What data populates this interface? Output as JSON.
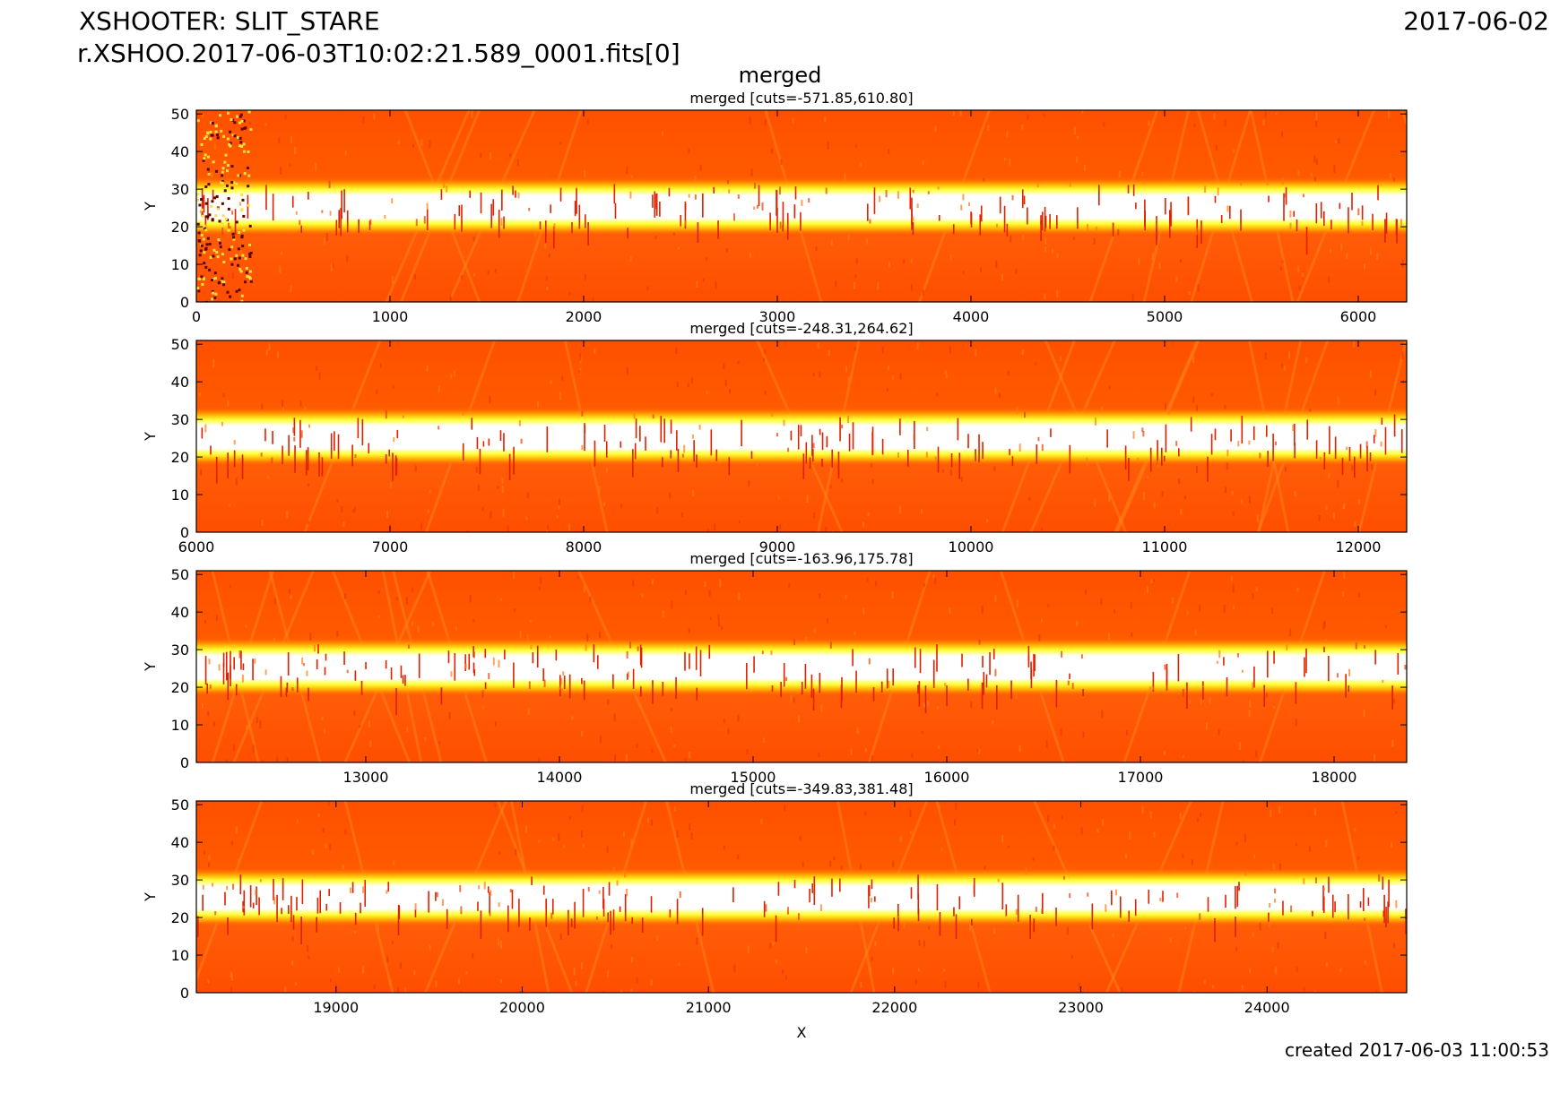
{
  "header": {
    "title_line1": "XSHOOTER: SLIT_STARE",
    "title_line2": "r.XSHOO.2017-06-03T10:02:21.589_0001.fits[0]",
    "date": "2017-06-02",
    "figure_title": "merged",
    "created": "created 2017-06-03 11:00:53"
  },
  "colors": {
    "background_dark": "#e8400a",
    "background_mid": "#ff5a00",
    "trace_core": "#ffffff",
    "trace_edge": "#ffff33",
    "bad_pixel": "#e02000"
  },
  "chart_data": [
    {
      "type": "heatmap",
      "title": "merged [cuts=-571.85,610.80]",
      "xlabel": "",
      "ylabel": "Y",
      "xlim": [
        0,
        6250
      ],
      "ylim": [
        0,
        51
      ],
      "xticks": [
        0,
        1000,
        2000,
        3000,
        4000,
        5000,
        6000
      ],
      "yticks": [
        0,
        10,
        20,
        30,
        40,
        50
      ],
      "trace_y": [
        20,
        31
      ]
    },
    {
      "type": "heatmap",
      "title": "merged [cuts=-248.31,264.62]",
      "xlabel": "",
      "ylabel": "Y",
      "xlim": [
        6000,
        12250
      ],
      "ylim": [
        0,
        51
      ],
      "xticks": [
        6000,
        7000,
        8000,
        9000,
        10000,
        11000,
        12000
      ],
      "yticks": [
        0,
        10,
        20,
        30,
        40,
        50
      ],
      "trace_y": [
        20,
        31
      ]
    },
    {
      "type": "heatmap",
      "title": "merged [cuts=-163.96,175.78]",
      "xlabel": "",
      "ylabel": "Y",
      "xlim": [
        12125,
        18375
      ],
      "ylim": [
        0,
        51
      ],
      "xticks": [
        13000,
        14000,
        15000,
        16000,
        17000,
        18000
      ],
      "yticks": [
        0,
        10,
        20,
        30,
        40,
        50
      ],
      "trace_y": [
        20,
        31
      ]
    },
    {
      "type": "heatmap",
      "title": "merged [cuts=-349.83,381.48]",
      "xlabel": "X",
      "ylabel": "Y",
      "xlim": [
        18250,
        24750
      ],
      "ylim": [
        0,
        51
      ],
      "xticks": [
        19000,
        20000,
        21000,
        22000,
        23000,
        24000
      ],
      "yticks": [
        0,
        10,
        20,
        30,
        40,
        50
      ],
      "trace_y": [
        20,
        31
      ]
    }
  ]
}
